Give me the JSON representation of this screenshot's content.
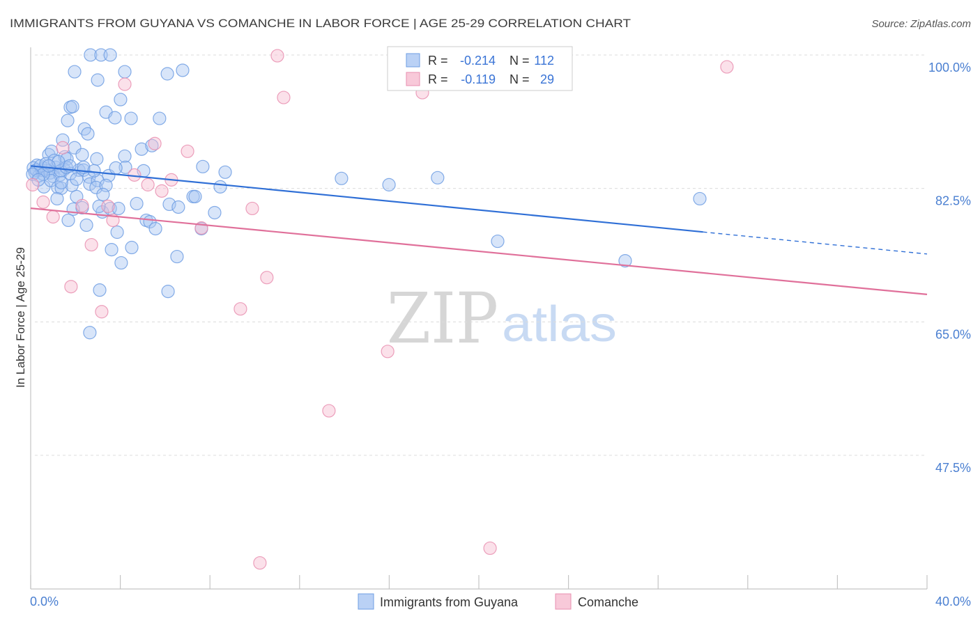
{
  "source": "Source: ZipAtlas.com",
  "watermark": {
    "zip": "ZIP",
    "atlas": "atlas"
  },
  "colors": {
    "blue_fill": "#a9c6f2",
    "blue_stroke": "#6f9ee3",
    "blue_line": "#2f6fd6",
    "pink_fill": "#f6bcd0",
    "pink_stroke": "#e98fb0",
    "pink_line": "#e0709a"
  },
  "chart_data": {
    "type": "scatter",
    "title": "IMMIGRANTS FROM GUYANA VS COMANCHE IN LABOR FORCE | AGE 25-29 CORRELATION CHART",
    "xlabel": "",
    "ylabel": "In Labor Force | Age 25-29",
    "xlim": [
      0,
      40
    ],
    "ylim": [
      30,
      101
    ],
    "x_tick_marks": [
      0,
      4,
      8,
      12,
      16,
      20,
      24,
      28,
      32,
      36,
      40
    ],
    "x_tick_labels": [
      "0.0%",
      "40.0%"
    ],
    "y_ticks": [
      100,
      82.5,
      65,
      47.5
    ],
    "y_tick_labels": [
      "100.0%",
      "82.5%",
      "65.0%",
      "47.5%"
    ],
    "grid": true,
    "legend": {
      "r_label": "R =",
      "n_label": "N =",
      "placement": "top-center"
    },
    "series": [
      {
        "name": "Immigrants from Guyana",
        "r_value": "-0.214",
        "n_value": "112",
        "trend": {
          "x": [
            0,
            40
          ],
          "y": [
            85.45,
            73.9
          ],
          "solid_until": 30
        },
        "points": [
          [
            2.67,
            100.0
          ],
          [
            3.14,
            100.0
          ],
          [
            3.55,
            100.0
          ],
          [
            1.96,
            97.8
          ],
          [
            4.2,
            97.8
          ],
          [
            6.1,
            97.53
          ],
          [
            6.78,
            97.99
          ],
          [
            2.99,
            96.71
          ],
          [
            4.01,
            94.15
          ],
          [
            1.77,
            93.14
          ],
          [
            1.87,
            93.23
          ],
          [
            3.36,
            92.5
          ],
          [
            3.76,
            91.77
          ],
          [
            4.48,
            91.68
          ],
          [
            5.75,
            91.68
          ],
          [
            1.65,
            91.4
          ],
          [
            2.4,
            90.3
          ],
          [
            2.55,
            89.66
          ],
          [
            1.43,
            88.84
          ],
          [
            1.96,
            87.83
          ],
          [
            4.95,
            87.65
          ],
          [
            5.41,
            88.11
          ],
          [
            0.81,
            86.92
          ],
          [
            0.93,
            87.37
          ],
          [
            2.3,
            86.92
          ],
          [
            1.52,
            86.64
          ],
          [
            1.62,
            86.37
          ],
          [
            2.95,
            86.37
          ],
          [
            4.2,
            86.73
          ],
          [
            0.28,
            85.54
          ],
          [
            0.59,
            85.18
          ],
          [
            1.12,
            85.27
          ],
          [
            1.49,
            85.0
          ],
          [
            2.15,
            84.9
          ],
          [
            2.36,
            84.9
          ],
          [
            4.23,
            85.27
          ],
          [
            5.04,
            84.81
          ],
          [
            7.68,
            85.36
          ],
          [
            8.68,
            84.63
          ],
          [
            0.12,
            85.18
          ],
          [
            0.19,
            84.63
          ],
          [
            0.37,
            84.17
          ],
          [
            0.5,
            84.9
          ],
          [
            0.72,
            84.81
          ],
          [
            0.87,
            84.54
          ],
          [
            1.0,
            84.08
          ],
          [
            1.31,
            84.26
          ],
          [
            1.77,
            84.45
          ],
          [
            2.61,
            83.99
          ],
          [
            0.59,
            82.71
          ],
          [
            0.9,
            83.53
          ],
          [
            1.21,
            82.62
          ],
          [
            1.37,
            82.53
          ],
          [
            1.84,
            82.89
          ],
          [
            2.64,
            83.07
          ],
          [
            3.48,
            84.17
          ],
          [
            2.99,
            83.53
          ],
          [
            2.92,
            82.62
          ],
          [
            3.36,
            82.89
          ],
          [
            8.46,
            82.71
          ],
          [
            13.87,
            83.81
          ],
          [
            15.99,
            82.98
          ],
          [
            18.16,
            83.9
          ],
          [
            1.18,
            81.15
          ],
          [
            2.05,
            81.43
          ],
          [
            3.23,
            81.7
          ],
          [
            4.73,
            80.51
          ],
          [
            6.19,
            80.42
          ],
          [
            6.59,
            80.05
          ],
          [
            7.25,
            81.43
          ],
          [
            7.34,
            81.43
          ],
          [
            1.9,
            79.78
          ],
          [
            2.3,
            79.96
          ],
          [
            3.2,
            79.41
          ],
          [
            3.55,
            79.87
          ],
          [
            3.92,
            79.87
          ],
          [
            8.21,
            79.32
          ],
          [
            29.86,
            81.15
          ],
          [
            1.68,
            78.32
          ],
          [
            2.49,
            77.68
          ],
          [
            5.16,
            78.32
          ],
          [
            5.32,
            78.13
          ],
          [
            3.86,
            76.76
          ],
          [
            5.57,
            77.22
          ],
          [
            7.62,
            77.22
          ],
          [
            20.84,
            75.57
          ],
          [
            3.61,
            74.47
          ],
          [
            4.51,
            74.75
          ],
          [
            6.53,
            73.56
          ],
          [
            4.04,
            72.74
          ],
          [
            26.53,
            73.01
          ],
          [
            3.08,
            69.17
          ],
          [
            6.13,
            68.99
          ],
          [
            2.64,
            63.59
          ],
          [
            0.25,
            84.9
          ],
          [
            0.44,
            85.45
          ],
          [
            0.68,
            85.73
          ],
          [
            1.06,
            86.18
          ],
          [
            1.34,
            84.81
          ],
          [
            1.59,
            85.27
          ],
          [
            0.56,
            84.36
          ],
          [
            0.09,
            84.36
          ],
          [
            2.05,
            83.71
          ],
          [
            1.24,
            86.0
          ],
          [
            2.36,
            85.27
          ],
          [
            2.83,
            84.81
          ],
          [
            0.81,
            85.45
          ],
          [
            0.34,
            83.62
          ],
          [
            1.74,
            85.45
          ],
          [
            1.37,
            83.26
          ],
          [
            3.05,
            80.15
          ],
          [
            3.8,
            85.18
          ]
        ]
      },
      {
        "name": "Comanche",
        "r_value": "-0.119",
        "n_value": "29",
        "trend": {
          "x": [
            0,
            40
          ],
          "y": [
            79.9,
            68.6
          ],
          "solid_until": 40
        },
        "points": [
          [
            11.01,
            99.9
          ],
          [
            31.07,
            98.44
          ],
          [
            4.2,
            96.16
          ],
          [
            11.29,
            94.42
          ],
          [
            17.48,
            95.06
          ],
          [
            1.43,
            87.83
          ],
          [
            5.54,
            88.38
          ],
          [
            7.0,
            87.37
          ],
          [
            0.09,
            82.98
          ],
          [
            4.63,
            84.26
          ],
          [
            5.23,
            82.98
          ],
          [
            5.85,
            82.16
          ],
          [
            6.28,
            83.62
          ],
          [
            0.56,
            80.7
          ],
          [
            2.3,
            80.24
          ],
          [
            3.45,
            80.15
          ],
          [
            9.89,
            79.87
          ],
          [
            1.0,
            78.77
          ],
          [
            3.67,
            78.32
          ],
          [
            7.62,
            77.31
          ],
          [
            2.71,
            75.11
          ],
          [
            1.8,
            69.62
          ],
          [
            10.54,
            70.81
          ],
          [
            3.17,
            66.33
          ],
          [
            9.36,
            66.7
          ],
          [
            15.93,
            61.12
          ],
          [
            13.31,
            53.34
          ],
          [
            20.5,
            35.32
          ],
          [
            10.23,
            33.39
          ]
        ]
      }
    ]
  }
}
